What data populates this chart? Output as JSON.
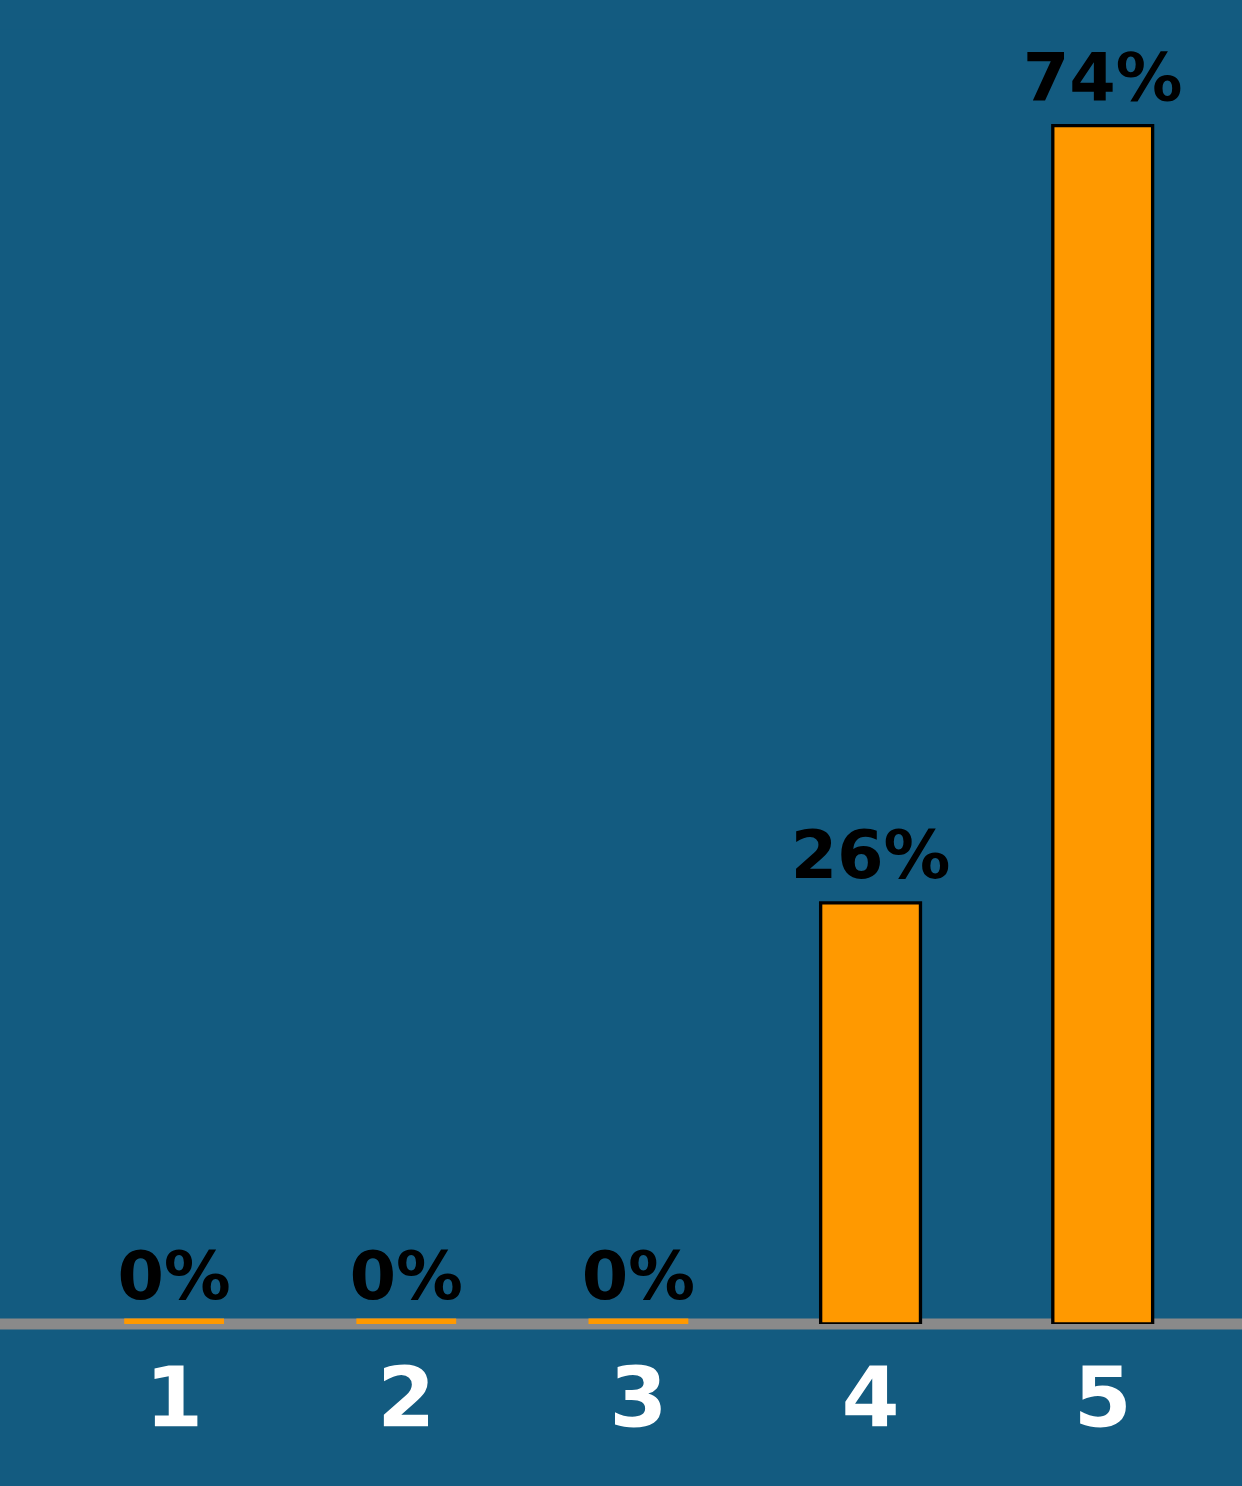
{
  "chart_data": {
    "type": "bar",
    "categories": [
      "1",
      "2",
      "3",
      "4",
      "5"
    ],
    "values": [
      0,
      0,
      0,
      26,
      74
    ],
    "value_labels": [
      "0%",
      "0%",
      "0%",
      "26%",
      "74%"
    ],
    "color": "#ff9900"
  }
}
